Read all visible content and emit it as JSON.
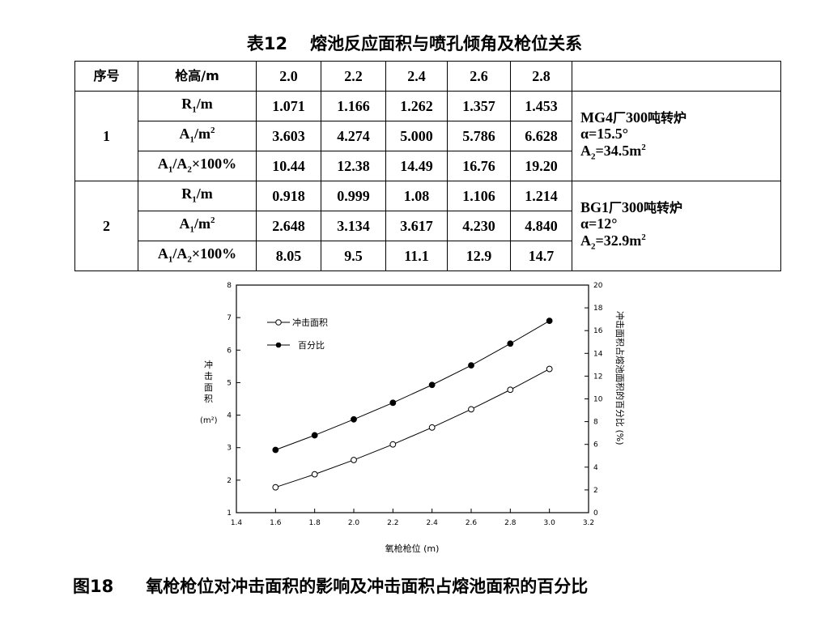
{
  "table": {
    "title_label": "表12",
    "title_text": "熔池反应面积与喷孔倾角及枪位关系",
    "header": [
      "序号",
      "枪高/m",
      "2.0",
      "2.2",
      "2.4",
      "2.6",
      "2.8",
      ""
    ],
    "groups": [
      {
        "id": "1",
        "rows": [
          {
            "param": "R1/m",
            "values": [
              "1.071",
              "1.166",
              "1.262",
              "1.357",
              "1.453"
            ]
          },
          {
            "param": "A1/m2",
            "values": [
              "3.603",
              "4.274",
              "5.000",
              "5.786",
              "6.628"
            ]
          },
          {
            "param": "A1/A2×100%",
            "values": [
              "10.44",
              "12.38",
              "14.49",
              "16.76",
              "19.20"
            ]
          }
        ],
        "note": {
          "line1": "MG4厂300吨转炉",
          "line2": "α=15.5°",
          "line3": "A2=34.5m2"
        }
      },
      {
        "id": "2",
        "rows": [
          {
            "param": "R1/m",
            "values": [
              "0.918",
              "0.999",
              "1.08",
              "1.106",
              "1.214"
            ]
          },
          {
            "param": "A1/m2",
            "values": [
              "2.648",
              "3.134",
              "3.617",
              "4.230",
              "4.840"
            ]
          },
          {
            "param": "A1/A2×100%",
            "values": [
              "8.05",
              "9.5",
              "11.1",
              "12.9",
              "14.7"
            ]
          }
        ],
        "note": {
          "line1": "BG1厂300吨转炉",
          "line2": "α=12°",
          "line3": "A2=32.9m2"
        }
      }
    ]
  },
  "chart_data": {
    "type": "line",
    "x": [
      1.6,
      1.8,
      2.0,
      2.2,
      2.4,
      2.6,
      2.8,
      3.0
    ],
    "xlabel": "氧枪枪位 (m)",
    "ylabel_left": "冲击面积 (m²)",
    "ylabel_right": "冲击面积占熔池面积的百分比 (%)",
    "xlim": [
      1.4,
      3.2
    ],
    "ylim_left": [
      1,
      8
    ],
    "ylim_right": [
      0,
      20
    ],
    "x_ticks": [
      "1.4",
      "1.6",
      "1.8",
      "2.0",
      "2.2",
      "2.4",
      "2.6",
      "2.8",
      "3.0",
      "3.2"
    ],
    "y_left_ticks": [
      "1",
      "2",
      "3",
      "4",
      "5",
      "6",
      "7",
      "8"
    ],
    "y_right_ticks": [
      "0",
      "2",
      "4",
      "6",
      "8",
      "10",
      "12",
      "14",
      "16",
      "18",
      "20"
    ],
    "legend_position": "top-left",
    "series": [
      {
        "name": "冲击面积",
        "axis": "left",
        "marker": "open-circle",
        "values": [
          1.78,
          2.18,
          2.62,
          3.1,
          3.62,
          4.18,
          4.78,
          5.42
        ]
      },
      {
        "name": "百分比",
        "axis": "left",
        "marker": "filled-circle",
        "values": [
          2.93,
          3.38,
          3.87,
          4.38,
          4.93,
          5.53,
          6.2,
          6.9
        ]
      }
    ]
  },
  "caption": {
    "label": "图18",
    "text": "氧枪枪位对冲击面积的影响及冲击面积占熔池面积的百分比"
  }
}
